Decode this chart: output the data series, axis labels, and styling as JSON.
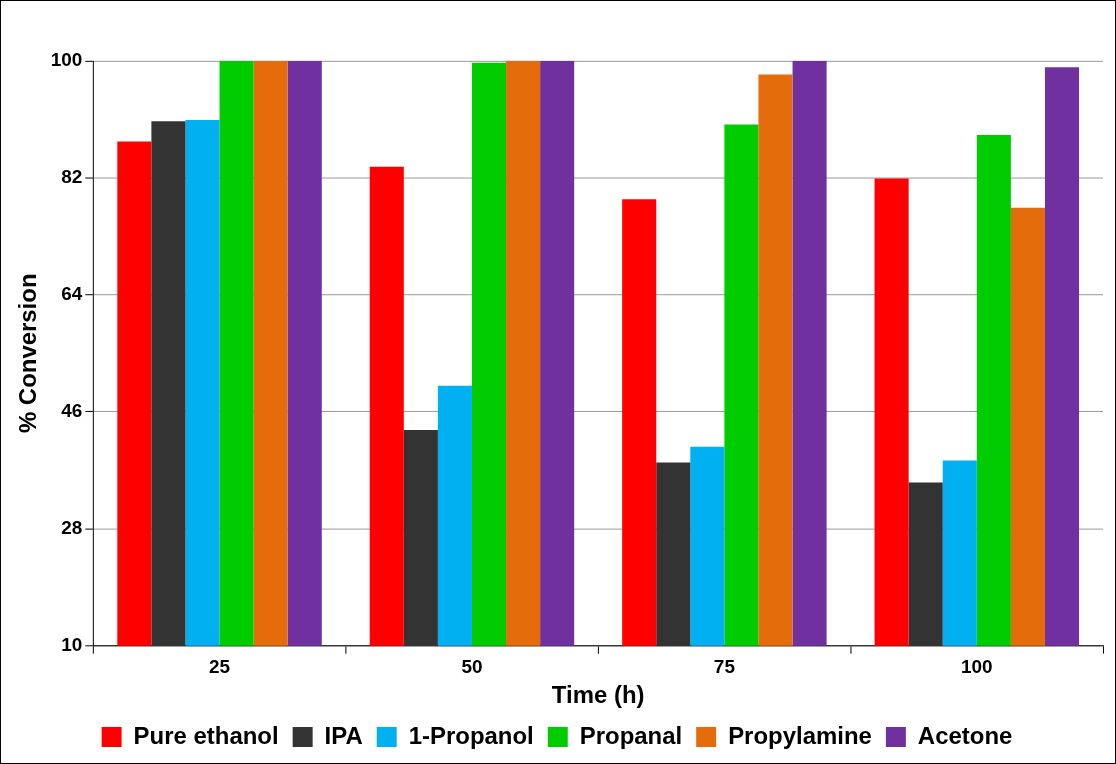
{
  "chart_data": {
    "type": "bar",
    "xlabel": "Time (h)",
    "ylabel": "% Conversion",
    "categories": [
      "25",
      "50",
      "75",
      "100"
    ],
    "series": [
      {
        "name": "Pure ethanol",
        "color": "#ff0000",
        "values": [
          87.6,
          83.7,
          78.7,
          81.9
        ]
      },
      {
        "name": "IPA",
        "color": "#333333",
        "values": [
          90.7,
          43.2,
          38.2,
          35.1
        ]
      },
      {
        "name": "1-Propanol",
        "color": "#00b0f0",
        "values": [
          90.9,
          50.0,
          40.6,
          38.5
        ]
      },
      {
        "name": "Propanal",
        "color": "#00cc00",
        "values": [
          100,
          99.7,
          90.2,
          88.6
        ]
      },
      {
        "name": "Propylamine",
        "color": "#e46c0a",
        "values": [
          100,
          100,
          97.9,
          77.4
        ]
      },
      {
        "name": "Acetone",
        "color": "#7030a0",
        "values": [
          100,
          100,
          100,
          99.0
        ]
      }
    ],
    "ylim": [
      10,
      100
    ],
    "yticks": [
      10,
      28,
      46,
      64,
      82,
      100
    ],
    "grid": "y",
    "legend": "bottom"
  }
}
